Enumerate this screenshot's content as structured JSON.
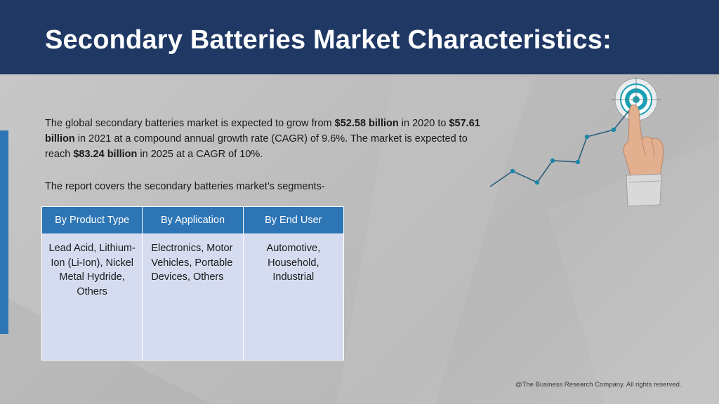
{
  "header": {
    "title": "Secondary Batteries Market Characteristics:"
  },
  "intro": {
    "p1_a": "The global secondary batteries market is expected to grow from ",
    "p1_b": "$52.58 billion",
    "p1_c": " in 2020 to ",
    "p1_d": "$57.61 billion",
    "p1_e": " in 2021 at a compound annual growth rate (CAGR) of 9.6%. The market is expected to reach ",
    "p1_f": "$83.24 billion",
    "p1_g": " in 2025 at a CAGR of 10%."
  },
  "segments_line": "The report covers the secondary batteries market’s segments-",
  "segments": [
    {
      "header": "By  Product Type",
      "body": "Lead Acid, Lithium-Ion (Li-Ion), Nickel Metal Hydride, Others"
    },
    {
      "header": "By Application",
      "body": "Electronics, Motor Vehicles, Portable Devices, Others"
    },
    {
      "header": "By  End User",
      "body": "Automotive, Household, Industrial"
    }
  ],
  "graphic": {
    "icon": "growth-chart-target-hand-icon"
  },
  "colors": {
    "header_bg": "#1f3864",
    "accent": "#2e75b6",
    "table_body": "#d6dcf0"
  },
  "footer": "@The Business Research Company. All rights reserved."
}
